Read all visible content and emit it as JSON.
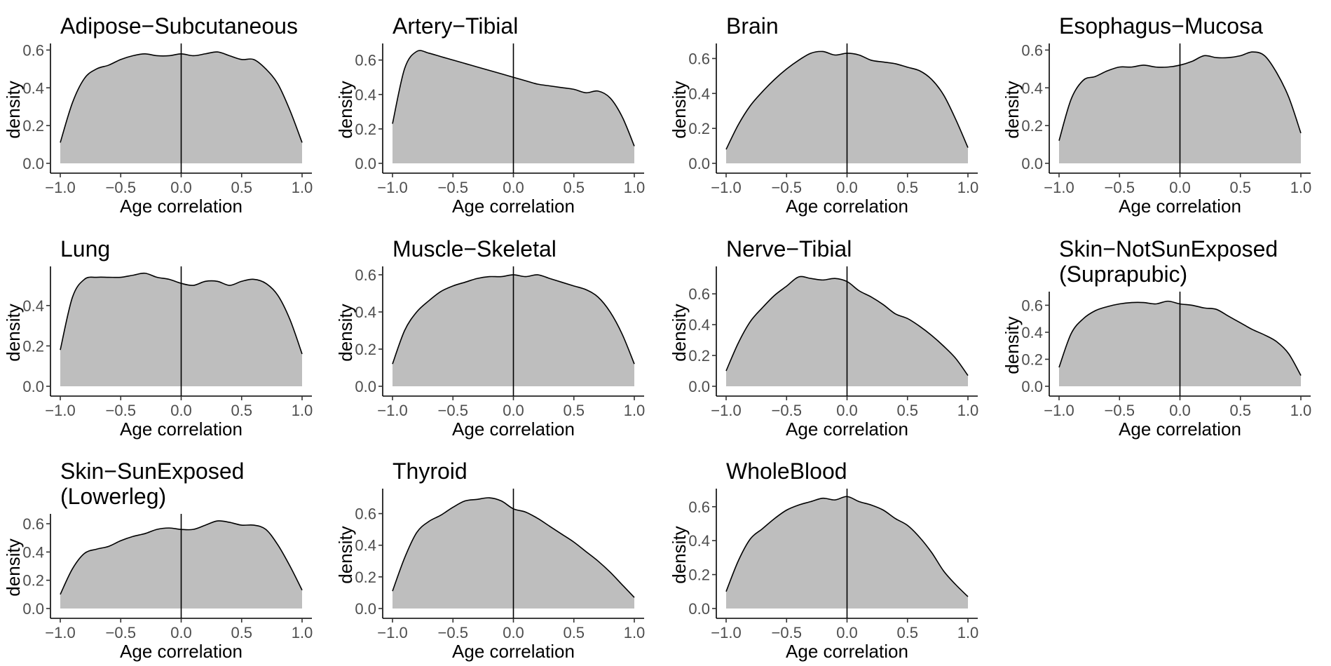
{
  "figure": {
    "background": "#ffffff",
    "fill_color": "#bebebe",
    "line_color": "#000000"
  },
  "chart_data": [
    {
      "type": "area",
      "title": [
        "Adipose−Subcutaneous"
      ],
      "xlabel": "Age correlation",
      "ylabel": "density",
      "xlim": [
        -1.0,
        1.0
      ],
      "ylim": [
        0,
        0.62
      ],
      "xticks": [
        "−1.0",
        "−0.5",
        "0.0",
        "0.5",
        "1.0"
      ],
      "xtick_values": [
        -1,
        -0.5,
        0,
        0.5,
        1
      ],
      "yticks": [
        "0.0",
        "0.2",
        "0.4",
        "0.6"
      ],
      "ytick_values": [
        0,
        0.2,
        0.4,
        0.6
      ],
      "vline": 0,
      "x": [
        -1.0,
        -0.9,
        -0.8,
        -0.7,
        -0.6,
        -0.5,
        -0.4,
        -0.3,
        -0.2,
        -0.1,
        0.0,
        0.1,
        0.2,
        0.3,
        0.4,
        0.5,
        0.6,
        0.7,
        0.8,
        0.9,
        1.0
      ],
      "y": [
        0.11,
        0.32,
        0.45,
        0.5,
        0.52,
        0.55,
        0.57,
        0.58,
        0.57,
        0.57,
        0.58,
        0.57,
        0.58,
        0.59,
        0.57,
        0.55,
        0.55,
        0.5,
        0.42,
        0.28,
        0.11
      ]
    },
    {
      "type": "area",
      "title": [
        "Artery−Tibial"
      ],
      "xlabel": "Age correlation",
      "ylabel": "density",
      "xlim": [
        -1.0,
        1.0
      ],
      "ylim": [
        0,
        0.68
      ],
      "xticks": [
        "−1.0",
        "−0.5",
        "0.0",
        "0.5",
        "1.0"
      ],
      "xtick_values": [
        -1,
        -0.5,
        0,
        0.5,
        1
      ],
      "yticks": [
        "0.0",
        "0.2",
        "0.4",
        "0.6"
      ],
      "ytick_values": [
        0,
        0.2,
        0.4,
        0.6
      ],
      "vline": 0,
      "x": [
        -1.0,
        -0.9,
        -0.8,
        -0.7,
        -0.6,
        -0.5,
        -0.4,
        -0.3,
        -0.2,
        -0.1,
        0.0,
        0.1,
        0.2,
        0.3,
        0.4,
        0.5,
        0.6,
        0.7,
        0.8,
        0.9,
        1.0
      ],
      "y": [
        0.23,
        0.55,
        0.65,
        0.64,
        0.62,
        0.6,
        0.58,
        0.56,
        0.54,
        0.52,
        0.5,
        0.48,
        0.46,
        0.45,
        0.44,
        0.43,
        0.41,
        0.42,
        0.38,
        0.27,
        0.1
      ]
    },
    {
      "type": "area",
      "title": [
        "Brain"
      ],
      "xlabel": "Age correlation",
      "ylabel": "density",
      "xlim": [
        -1.0,
        1.0
      ],
      "ylim": [
        0,
        0.67
      ],
      "xticks": [
        "−1.0",
        "−0.5",
        "0.0",
        "0.5",
        "1.0"
      ],
      "xtick_values": [
        -1,
        -0.5,
        0,
        0.5,
        1
      ],
      "yticks": [
        "0.0",
        "0.2",
        "0.4",
        "0.6"
      ],
      "ytick_values": [
        0,
        0.2,
        0.4,
        0.6
      ],
      "vline": 0,
      "x": [
        -1.0,
        -0.9,
        -0.8,
        -0.7,
        -0.6,
        -0.5,
        -0.4,
        -0.3,
        -0.2,
        -0.1,
        0.0,
        0.1,
        0.2,
        0.3,
        0.4,
        0.5,
        0.6,
        0.7,
        0.8,
        0.9,
        1.0
      ],
      "y": [
        0.08,
        0.22,
        0.33,
        0.41,
        0.48,
        0.54,
        0.59,
        0.63,
        0.64,
        0.62,
        0.63,
        0.62,
        0.59,
        0.58,
        0.57,
        0.55,
        0.53,
        0.48,
        0.39,
        0.25,
        0.09
      ]
    },
    {
      "type": "area",
      "title": [
        "Esophagus−Mucosa"
      ],
      "xlabel": "Age correlation",
      "ylabel": "density",
      "xlim": [
        -1.0,
        1.0
      ],
      "ylim": [
        0,
        0.62
      ],
      "xticks": [
        "−1.0",
        "−0.5",
        "0.0",
        "0.5",
        "1.0"
      ],
      "xtick_values": [
        -1,
        -0.5,
        0,
        0.5,
        1
      ],
      "yticks": [
        "0.0",
        "0.2",
        "0.4",
        "0.6"
      ],
      "ytick_values": [
        0,
        0.2,
        0.4,
        0.6
      ],
      "vline": 0,
      "x": [
        -1.0,
        -0.9,
        -0.8,
        -0.7,
        -0.6,
        -0.5,
        -0.4,
        -0.3,
        -0.2,
        -0.1,
        0.0,
        0.1,
        0.2,
        0.3,
        0.4,
        0.5,
        0.6,
        0.7,
        0.8,
        0.9,
        1.0
      ],
      "y": [
        0.12,
        0.34,
        0.44,
        0.46,
        0.49,
        0.51,
        0.51,
        0.52,
        0.51,
        0.51,
        0.52,
        0.54,
        0.57,
        0.56,
        0.56,
        0.57,
        0.59,
        0.57,
        0.48,
        0.35,
        0.16
      ]
    },
    {
      "type": "area",
      "title": [
        "Lung"
      ],
      "xlabel": "Age correlation",
      "ylabel": "density",
      "xlim": [
        -1.0,
        1.0
      ],
      "ylim": [
        0,
        0.58
      ],
      "xticks": [
        "−1.0",
        "−0.5",
        "0.0",
        "0.5",
        "1.0"
      ],
      "xtick_values": [
        -1,
        -0.5,
        0,
        0.5,
        1
      ],
      "yticks": [
        "0.0",
        "0.2",
        "0.4"
      ],
      "ytick_values": [
        0,
        0.2,
        0.4
      ],
      "vline": 0,
      "x": [
        -1.0,
        -0.9,
        -0.8,
        -0.7,
        -0.6,
        -0.5,
        -0.4,
        -0.3,
        -0.2,
        -0.1,
        0.0,
        0.1,
        0.2,
        0.3,
        0.4,
        0.5,
        0.6,
        0.7,
        0.8,
        0.9,
        1.0
      ],
      "y": [
        0.18,
        0.44,
        0.53,
        0.54,
        0.54,
        0.54,
        0.55,
        0.56,
        0.54,
        0.53,
        0.51,
        0.5,
        0.52,
        0.52,
        0.5,
        0.52,
        0.53,
        0.51,
        0.45,
        0.33,
        0.16
      ]
    },
    {
      "type": "area",
      "title": [
        "Muscle−Skeletal"
      ],
      "xlabel": "Age correlation",
      "ylabel": "density",
      "xlim": [
        -1.0,
        1.0
      ],
      "ylim": [
        0,
        0.63
      ],
      "xticks": [
        "−1.0",
        "−0.5",
        "0.0",
        "0.5",
        "1.0"
      ],
      "xtick_values": [
        -1,
        -0.5,
        0,
        0.5,
        1
      ],
      "yticks": [
        "0.0",
        "0.2",
        "0.4",
        "0.6"
      ],
      "ytick_values": [
        0,
        0.2,
        0.4,
        0.6
      ],
      "vline": 0,
      "x": [
        -1.0,
        -0.9,
        -0.8,
        -0.7,
        -0.6,
        -0.5,
        -0.4,
        -0.3,
        -0.2,
        -0.1,
        0.0,
        0.1,
        0.2,
        0.3,
        0.4,
        0.5,
        0.6,
        0.7,
        0.8,
        0.9,
        1.0
      ],
      "y": [
        0.12,
        0.3,
        0.4,
        0.46,
        0.51,
        0.54,
        0.56,
        0.58,
        0.59,
        0.59,
        0.6,
        0.59,
        0.6,
        0.58,
        0.56,
        0.54,
        0.52,
        0.48,
        0.4,
        0.28,
        0.12
      ]
    },
    {
      "type": "area",
      "title": [
        "Nerve−Tibial"
      ],
      "xlabel": "Age correlation",
      "ylabel": "density",
      "xlim": [
        -1.0,
        1.0
      ],
      "ylim": [
        0,
        0.76
      ],
      "xticks": [
        "−1.0",
        "−0.5",
        "0.0",
        "0.5",
        "1.0"
      ],
      "xtick_values": [
        -1,
        -0.5,
        0,
        0.5,
        1
      ],
      "yticks": [
        "0.0",
        "0.2",
        "0.4",
        "0.6"
      ],
      "ytick_values": [
        0,
        0.2,
        0.4,
        0.6
      ],
      "vline": 0,
      "x": [
        -1.0,
        -0.9,
        -0.8,
        -0.7,
        -0.6,
        -0.5,
        -0.4,
        -0.3,
        -0.2,
        -0.1,
        0.0,
        0.1,
        0.2,
        0.3,
        0.4,
        0.5,
        0.6,
        0.7,
        0.8,
        0.9,
        1.0
      ],
      "y": [
        0.1,
        0.28,
        0.42,
        0.51,
        0.59,
        0.65,
        0.71,
        0.7,
        0.69,
        0.7,
        0.68,
        0.62,
        0.58,
        0.53,
        0.47,
        0.44,
        0.39,
        0.33,
        0.26,
        0.18,
        0.07
      ]
    },
    {
      "type": "area",
      "title": [
        "Skin−NotSunExposed",
        "(Suprapubic)"
      ],
      "xlabel": "Age correlation",
      "ylabel": "density",
      "xlim": [
        -1.0,
        1.0
      ],
      "ylim": [
        0,
        0.68
      ],
      "xticks": [
        "−1.0",
        "−0.5",
        "0.0",
        "0.5",
        "1.0"
      ],
      "xtick_values": [
        -1,
        -0.5,
        0,
        0.5,
        1
      ],
      "yticks": [
        "0.0",
        "0.2",
        "0.4",
        "0.6"
      ],
      "ytick_values": [
        0,
        0.2,
        0.4,
        0.6
      ],
      "vline": 0,
      "x": [
        -1.0,
        -0.9,
        -0.8,
        -0.7,
        -0.6,
        -0.5,
        -0.4,
        -0.3,
        -0.2,
        -0.1,
        0.0,
        0.1,
        0.2,
        0.3,
        0.4,
        0.5,
        0.6,
        0.7,
        0.8,
        0.9,
        1.0
      ],
      "y": [
        0.14,
        0.39,
        0.5,
        0.56,
        0.59,
        0.61,
        0.62,
        0.62,
        0.61,
        0.63,
        0.61,
        0.6,
        0.58,
        0.57,
        0.52,
        0.47,
        0.42,
        0.38,
        0.33,
        0.24,
        0.08
      ]
    },
    {
      "type": "area",
      "title": [
        "Skin−SunExposed",
        "(Lowerleg)"
      ],
      "xlabel": "Age correlation",
      "ylabel": "density",
      "xlim": [
        -1.0,
        1.0
      ],
      "ylim": [
        0,
        0.65
      ],
      "xticks": [
        "−1.0",
        "−0.5",
        "0.0",
        "0.5",
        "1.0"
      ],
      "xtick_values": [
        -1,
        -0.5,
        0,
        0.5,
        1
      ],
      "yticks": [
        "0.0",
        "0.2",
        "0.4",
        "0.6"
      ],
      "ytick_values": [
        0,
        0.2,
        0.4,
        0.6
      ],
      "vline": 0,
      "x": [
        -1.0,
        -0.9,
        -0.8,
        -0.7,
        -0.6,
        -0.5,
        -0.4,
        -0.3,
        -0.2,
        -0.1,
        0.0,
        0.1,
        0.2,
        0.3,
        0.4,
        0.5,
        0.6,
        0.7,
        0.8,
        0.9,
        1.0
      ],
      "y": [
        0.1,
        0.28,
        0.39,
        0.42,
        0.44,
        0.48,
        0.51,
        0.53,
        0.56,
        0.57,
        0.56,
        0.56,
        0.59,
        0.62,
        0.61,
        0.59,
        0.59,
        0.56,
        0.45,
        0.3,
        0.13
      ]
    },
    {
      "type": "area",
      "title": [
        "Thyroid"
      ],
      "xlabel": "Age correlation",
      "ylabel": "density",
      "xlim": [
        -1.0,
        1.0
      ],
      "ylim": [
        0,
        0.74
      ],
      "xticks": [
        "−1.0",
        "−0.5",
        "0.0",
        "0.5",
        "1.0"
      ],
      "xtick_values": [
        -1,
        -0.5,
        0,
        0.5,
        1
      ],
      "yticks": [
        "0.0",
        "0.2",
        "0.4",
        "0.6"
      ],
      "ytick_values": [
        0,
        0.2,
        0.4,
        0.6
      ],
      "vline": 0,
      "x": [
        -1.0,
        -0.9,
        -0.8,
        -0.7,
        -0.6,
        -0.5,
        -0.4,
        -0.3,
        -0.2,
        -0.1,
        0.0,
        0.1,
        0.2,
        0.3,
        0.4,
        0.5,
        0.6,
        0.7,
        0.8,
        0.9,
        1.0
      ],
      "y": [
        0.11,
        0.32,
        0.48,
        0.55,
        0.59,
        0.64,
        0.68,
        0.69,
        0.7,
        0.68,
        0.63,
        0.61,
        0.57,
        0.52,
        0.47,
        0.42,
        0.36,
        0.3,
        0.23,
        0.15,
        0.07
      ]
    },
    {
      "type": "area",
      "title": [
        "WholeBlood"
      ],
      "xlabel": "Age correlation",
      "ylabel": "density",
      "xlim": [
        -1.0,
        1.0
      ],
      "ylim": [
        0,
        0.69
      ],
      "xticks": [
        "−1.0",
        "−0.5",
        "0.0",
        "0.5",
        "1.0"
      ],
      "xtick_values": [
        -1,
        -0.5,
        0,
        0.5,
        1
      ],
      "yticks": [
        "0.0",
        "0.2",
        "0.4",
        "0.6"
      ],
      "ytick_values": [
        0,
        0.2,
        0.4,
        0.6
      ],
      "vline": 0,
      "x": [
        -1.0,
        -0.9,
        -0.8,
        -0.7,
        -0.6,
        -0.5,
        -0.4,
        -0.3,
        -0.2,
        -0.1,
        0.0,
        0.1,
        0.2,
        0.3,
        0.4,
        0.5,
        0.6,
        0.7,
        0.8,
        0.9,
        1.0
      ],
      "y": [
        0.1,
        0.28,
        0.41,
        0.47,
        0.53,
        0.58,
        0.61,
        0.63,
        0.65,
        0.64,
        0.66,
        0.63,
        0.61,
        0.58,
        0.53,
        0.49,
        0.42,
        0.33,
        0.22,
        0.14,
        0.07
      ]
    }
  ]
}
